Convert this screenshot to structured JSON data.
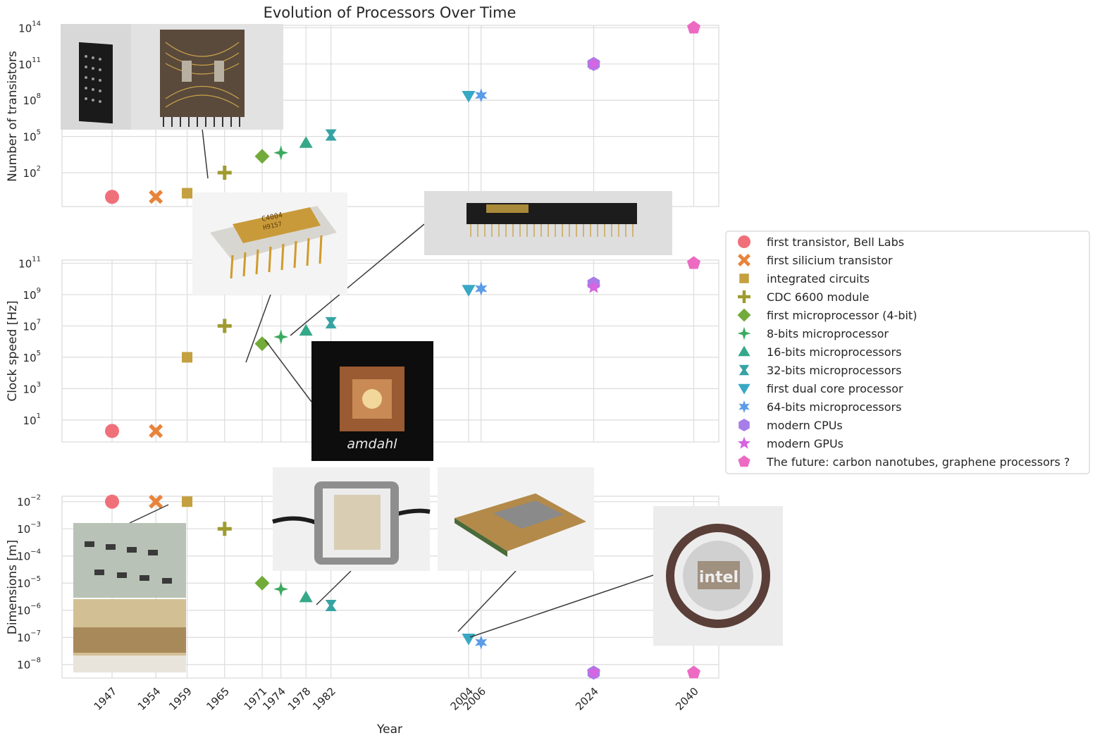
{
  "chart_data": {
    "type": "scatter",
    "title": "Evolution of Processors Over Time",
    "xlabel": "Year",
    "x_ticks": [
      1947,
      1954,
      1959,
      1965,
      1971,
      1974,
      1978,
      1982,
      2004,
      2006,
      2024,
      2040
    ],
    "x_range": [
      1939,
      2044
    ],
    "grid": true,
    "legend_position": "right",
    "series": [
      {
        "name": "first transistor, Bell Labs",
        "marker": "circle",
        "color": "#f0707a",
        "x": 1947,
        "transistors": 1,
        "clock_hz": 2,
        "dimensions_m": 0.01
      },
      {
        "name": "first silicium transistor",
        "marker": "x",
        "color": "#e8833a",
        "x": 1954,
        "transistors": 1,
        "clock_hz": 2,
        "dimensions_m": 0.01
      },
      {
        "name": "integrated circuits",
        "marker": "square",
        "color": "#c4a040",
        "x": 1959,
        "transistors": 2,
        "clock_hz": 100000,
        "dimensions_m": 0.01
      },
      {
        "name": "CDC 6600 module",
        "marker": "plus",
        "color": "#9f9b2f",
        "x": 1965,
        "transistors": 100,
        "clock_hz": 10000000,
        "dimensions_m": 0.001
      },
      {
        "name": "first microprocessor (4-bit)",
        "marker": "diamond",
        "color": "#72ab3a",
        "x": 1971,
        "transistors": 2300,
        "clock_hz": 740000,
        "dimensions_m": 1e-05
      },
      {
        "name": "8-bits microprocessor",
        "marker": "star4",
        "color": "#3caa5e",
        "x": 1974,
        "transistors": 4500,
        "clock_hz": 2000000,
        "dimensions_m": 6e-06
      },
      {
        "name": "16-bits microprocessors",
        "marker": "triangle-up",
        "color": "#36a88a",
        "x": 1978,
        "transistors": 29000,
        "clock_hz": 5000000,
        "dimensions_m": 3e-06
      },
      {
        "name": "32-bits microprocessors",
        "marker": "hourglass",
        "color": "#36a3a3",
        "x": 1982,
        "transistors": 134000,
        "clock_hz": 16000000,
        "dimensions_m": 1.5e-06
      },
      {
        "name": "first dual core processor",
        "marker": "triangle-down",
        "color": "#38a8c4",
        "x": 2004,
        "transistors": 230000000,
        "clock_hz": 2000000000,
        "dimensions_m": 9e-08
      },
      {
        "name": "64-bits microprocessors",
        "marker": "star6",
        "color": "#5b9be8",
        "x": 2006,
        "transistors": 250000000,
        "clock_hz": 2400000000,
        "dimensions_m": 6.5e-08
      },
      {
        "name": "modern CPUs",
        "marker": "hexagon",
        "color": "#a77de8",
        "x": 2024,
        "transistors": 100000000000,
        "clock_hz": 5000000000,
        "dimensions_m": 5e-09
      },
      {
        "name": "modern GPUs",
        "marker": "star5",
        "color": "#d764e0",
        "x": 2024,
        "transistors": 100000000000,
        "clock_hz": 3000000000,
        "dimensions_m": 5e-09
      },
      {
        "name": "The future: carbon nanotubes, graphene processors ?",
        "marker": "pentagon",
        "color": "#ec6ac2",
        "x": 2040,
        "transistors": 100000000000000,
        "clock_hz": 100000000000,
        "dimensions_m": 5e-09
      }
    ],
    "panels": [
      {
        "key": "transistors",
        "ylabel": "Number of transistors",
        "yscale": "log",
        "ylim_exp": [
          -0.8,
          14.2
        ],
        "tick_exps": [
          2,
          5,
          8,
          11,
          14
        ]
      },
      {
        "key": "clock_hz",
        "ylabel": "Clock speed [Hz]",
        "yscale": "log",
        "ylim_exp": [
          -0.4,
          11.2
        ],
        "tick_exps": [
          1,
          3,
          5,
          7,
          9,
          11
        ]
      },
      {
        "key": "dimensions_m",
        "ylabel": "Dimensions [m]",
        "yscale": "log",
        "ylim_exp": [
          -8.5,
          -1.8
        ],
        "tick_exps": [
          -2,
          -3,
          -4,
          -5,
          -6,
          -7,
          -8
        ]
      }
    ]
  },
  "photos": [
    {
      "name": "cdc-module-photo",
      "label": "CDC 6600 module"
    },
    {
      "name": "cdc-board-photo",
      "label": "CDC 6600 board"
    },
    {
      "name": "c4004-chip-photo",
      "label": "C4004",
      "sub": "H9157"
    },
    {
      "name": "cpu-32bit-photo",
      "label": "32-bit chip"
    },
    {
      "name": "amdahl-photo",
      "label": "amdahl"
    },
    {
      "name": "ic-board-photo",
      "label": "integrated circuit boards"
    },
    {
      "name": "module-bits-photo",
      "label": "16-bit module"
    },
    {
      "name": "dual-core-photo",
      "label": "dual core CPU"
    },
    {
      "name": "intel-wafer-photo",
      "label": "intel"
    }
  ]
}
